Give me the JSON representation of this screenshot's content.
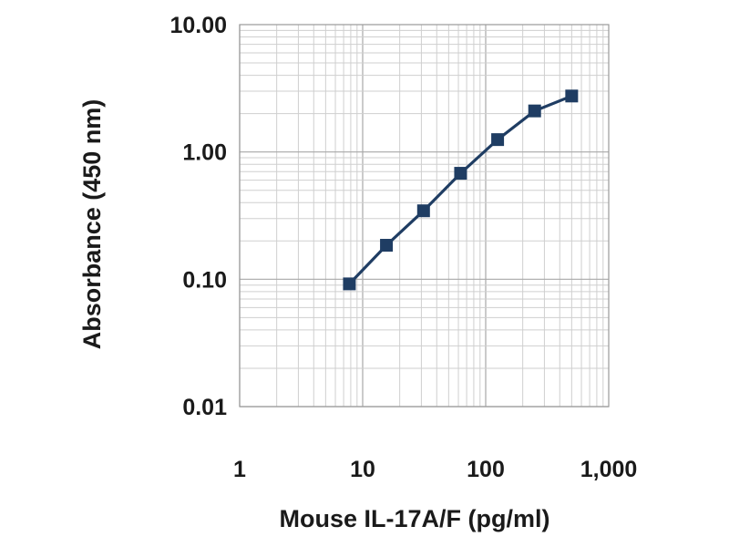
{
  "chart_data": {
    "type": "line",
    "title": "",
    "xlabel": "Mouse IL-17A/F (pg/ml)",
    "ylabel": "Absorbance (450 nm)",
    "xscale": "log",
    "yscale": "log",
    "xlim": [
      1,
      1000
    ],
    "ylim": [
      0.01,
      10
    ],
    "x_tick_labels": [
      "1",
      "10",
      "100",
      "1,000"
    ],
    "y_tick_labels": [
      "10.00",
      "1.00",
      "0.10",
      "0.01"
    ],
    "grid": true,
    "legend": "none",
    "marker": "square",
    "series_color": "#1f3d63",
    "series": [
      {
        "x": [
          7.8,
          15.6,
          31.25,
          62.5,
          125,
          250,
          500
        ],
        "values": [
          0.092,
          0.185,
          0.345,
          0.68,
          1.25,
          2.1,
          2.75
        ]
      }
    ]
  }
}
